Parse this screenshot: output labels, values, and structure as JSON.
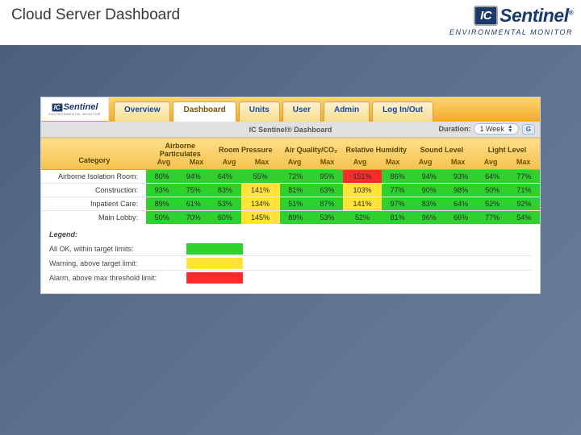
{
  "page_title": "Cloud Server Dashboard",
  "logo": {
    "ic": "IC",
    "sentinel": "Sentinel",
    "reg": "®",
    "subtitle": "ENVIRONMENTAL MONITOR",
    "brand_color": "#1a3a6e"
  },
  "tabs": {
    "items": [
      "Overview",
      "Dashboard",
      "Units",
      "User",
      "Admin",
      "Log In/Out"
    ],
    "active_index": 1,
    "bar_gradient_top": "#ffd56a",
    "bar_gradient_bottom": "#f2a92e"
  },
  "subheader": {
    "title": "IC Sentinel® Dashboard",
    "duration_label": "Duration:",
    "duration_value": "1 Week",
    "go_label": "G"
  },
  "status_colors": {
    "ok": "#2fd12f",
    "warn": "#ffe23a",
    "alarm": "#ff2a2a"
  },
  "table": {
    "category_label": "Category",
    "groups": [
      {
        "label": "Airborne Particulates",
        "subs": [
          "Avg",
          "Max"
        ]
      },
      {
        "label": "Room Pressure",
        "subs": [
          "Avg",
          "Max"
        ]
      },
      {
        "label": "Air Quality/CO₂",
        "subs": [
          "Avg",
          "Max"
        ]
      },
      {
        "label": "Relative Humidity",
        "subs": [
          "Avg",
          "Max"
        ]
      },
      {
        "label": "Sound Level",
        "subs": [
          "Avg",
          "Max"
        ]
      },
      {
        "label": "Light Level",
        "subs": [
          "Avg",
          "Max"
        ]
      }
    ],
    "rows": [
      {
        "label": "Airborne Isolation Room:",
        "cells": [
          {
            "v": "80%",
            "s": "ok"
          },
          {
            "v": "94%",
            "s": "ok"
          },
          {
            "v": "64%",
            "s": "ok"
          },
          {
            "v": "55%",
            "s": "ok"
          },
          {
            "v": "72%",
            "s": "ok"
          },
          {
            "v": "95%",
            "s": "ok"
          },
          {
            "v": "151%",
            "s": "alarm"
          },
          {
            "v": "86%",
            "s": "ok"
          },
          {
            "v": "94%",
            "s": "ok"
          },
          {
            "v": "93%",
            "s": "ok"
          },
          {
            "v": "64%",
            "s": "ok"
          },
          {
            "v": "77%",
            "s": "ok"
          }
        ]
      },
      {
        "label": "Construction:",
        "cells": [
          {
            "v": "93%",
            "s": "ok"
          },
          {
            "v": "75%",
            "s": "ok"
          },
          {
            "v": "83%",
            "s": "ok"
          },
          {
            "v": "141%",
            "s": "warn"
          },
          {
            "v": "81%",
            "s": "ok"
          },
          {
            "v": "63%",
            "s": "ok"
          },
          {
            "v": "103%",
            "s": "warn"
          },
          {
            "v": "77%",
            "s": "ok"
          },
          {
            "v": "90%",
            "s": "ok"
          },
          {
            "v": "98%",
            "s": "ok"
          },
          {
            "v": "50%",
            "s": "ok"
          },
          {
            "v": "71%",
            "s": "ok"
          }
        ]
      },
      {
        "label": "Inpatient Care:",
        "cells": [
          {
            "v": "89%",
            "s": "ok"
          },
          {
            "v": "61%",
            "s": "ok"
          },
          {
            "v": "53%",
            "s": "ok"
          },
          {
            "v": "134%",
            "s": "warn"
          },
          {
            "v": "51%",
            "s": "ok"
          },
          {
            "v": "87%",
            "s": "ok"
          },
          {
            "v": "141%",
            "s": "warn"
          },
          {
            "v": "97%",
            "s": "ok"
          },
          {
            "v": "83%",
            "s": "ok"
          },
          {
            "v": "64%",
            "s": "ok"
          },
          {
            "v": "52%",
            "s": "ok"
          },
          {
            "v": "92%",
            "s": "ok"
          }
        ]
      },
      {
        "label": "Main Lobby:",
        "cells": [
          {
            "v": "50%",
            "s": "ok"
          },
          {
            "v": "70%",
            "s": "ok"
          },
          {
            "v": "60%",
            "s": "ok"
          },
          {
            "v": "145%",
            "s": "warn"
          },
          {
            "v": "89%",
            "s": "ok"
          },
          {
            "v": "53%",
            "s": "ok"
          },
          {
            "v": "52%",
            "s": "ok"
          },
          {
            "v": "81%",
            "s": "ok"
          },
          {
            "v": "96%",
            "s": "ok"
          },
          {
            "v": "66%",
            "s": "ok"
          },
          {
            "v": "77%",
            "s": "ok"
          },
          {
            "v": "54%",
            "s": "ok"
          }
        ]
      }
    ]
  },
  "legend": {
    "title": "Legend:",
    "items": [
      {
        "label": "All OK, within target limits:",
        "status": "ok"
      },
      {
        "label": "Warning, above target limit:",
        "status": "warn"
      },
      {
        "label": "Alarm, above max threshold limit:",
        "status": "alarm"
      }
    ]
  }
}
